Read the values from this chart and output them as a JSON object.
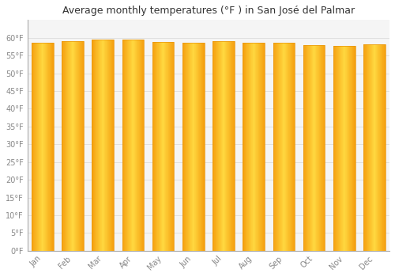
{
  "title": "Average monthly temperatures (°F ) in San José del Palmar",
  "months": [
    "Jan",
    "Feb",
    "Mar",
    "Apr",
    "May",
    "Jun",
    "Jul",
    "Aug",
    "Sep",
    "Oct",
    "Nov",
    "Dec"
  ],
  "values": [
    58.5,
    59.1,
    59.5,
    59.5,
    58.8,
    58.5,
    59.0,
    58.5,
    58.5,
    58.0,
    57.8,
    58.2
  ],
  "ylim": [
    0,
    65
  ],
  "ytick_step": 5,
  "yticks": [
    0,
    5,
    10,
    15,
    20,
    25,
    30,
    35,
    40,
    45,
    50,
    55,
    60
  ],
  "background_color": "#ffffff",
  "plot_bg_color": "#f5f5f5",
  "grid_color": "#e0e0e0",
  "title_fontsize": 9,
  "tick_fontsize": 7,
  "bar_color_edge": "#E8960A",
  "bar_color_center": "#FFD44A",
  "bar_width": 0.72,
  "tick_color": "#888888",
  "spine_color": "#aaaaaa"
}
